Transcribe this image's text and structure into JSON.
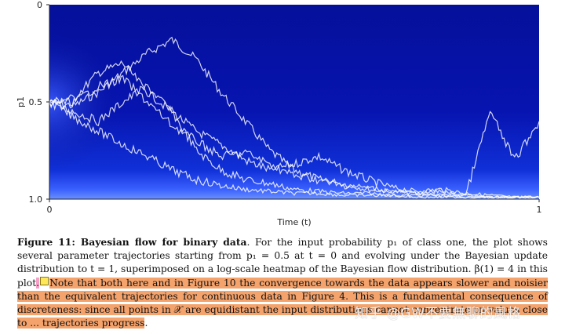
{
  "chart_data": {
    "type": "line",
    "xlabel": "Time (t)",
    "ylabel": "p1",
    "xlim": [
      0,
      1
    ],
    "ylim": [
      0,
      1.0
    ],
    "y_inverted": true,
    "x_ticks": [
      "0",
      "1"
    ],
    "y_ticks": [
      "0",
      "0.5",
      "1.0"
    ],
    "background": "log-scale heatmap of Bayesian flow distribution (dark blue to bright near p1 = 1.0)",
    "start": [
      0,
      0.5
    ],
    "series": [
      {
        "x": [
          0,
          0.05,
          0.1,
          0.15,
          0.2,
          0.25,
          0.3,
          0.35,
          0.4,
          0.45,
          0.5,
          0.55,
          0.6,
          0.65,
          0.7,
          0.75,
          0.8,
          0.85,
          0.9,
          0.95,
          1.0
        ],
        "y": [
          0.5,
          0.52,
          0.45,
          0.35,
          0.25,
          0.18,
          0.28,
          0.45,
          0.6,
          0.75,
          0.85,
          0.9,
          0.92,
          0.95,
          0.96,
          0.97,
          0.98,
          0.98,
          0.99,
          0.99,
          0.99
        ]
      },
      {
        "x": [
          0,
          0.05,
          0.1,
          0.15,
          0.2,
          0.25,
          0.3,
          0.35,
          0.4,
          0.45,
          0.5,
          0.55,
          0.6,
          0.65,
          0.7,
          0.75,
          0.8,
          0.85,
          0.9,
          0.95,
          1.0
        ],
        "y": [
          0.5,
          0.48,
          0.35,
          0.3,
          0.45,
          0.55,
          0.65,
          0.72,
          0.8,
          0.85,
          0.82,
          0.78,
          0.85,
          0.9,
          0.94,
          0.96,
          0.95,
          0.97,
          0.98,
          0.99,
          0.99
        ]
      },
      {
        "x": [
          0,
          0.05,
          0.1,
          0.15,
          0.2,
          0.25,
          0.3,
          0.35,
          0.4,
          0.45,
          0.5,
          0.55,
          0.6,
          0.65,
          0.7,
          0.75,
          0.8,
          0.85,
          0.9,
          0.95,
          1.0
        ],
        "y": [
          0.5,
          0.55,
          0.6,
          0.5,
          0.42,
          0.55,
          0.75,
          0.85,
          0.9,
          0.92,
          0.95,
          0.96,
          0.97,
          0.97,
          0.98,
          0.98,
          0.98,
          0.99,
          0.99,
          0.99,
          0.99
        ]
      },
      {
        "x": [
          0,
          0.05,
          0.1,
          0.15,
          0.2,
          0.25,
          0.3,
          0.35,
          0.4,
          0.45,
          0.5,
          0.55,
          0.6,
          0.65,
          0.7,
          0.75,
          0.8,
          0.85,
          0.9,
          0.95,
          1.0
        ],
        "y": [
          0.5,
          0.58,
          0.65,
          0.72,
          0.78,
          0.85,
          0.9,
          0.93,
          0.95,
          0.96,
          0.97,
          0.97,
          0.98,
          0.98,
          0.98,
          0.99,
          0.99,
          0.99,
          0.99,
          0.99,
          0.99
        ]
      },
      {
        "x": [
          0,
          0.05,
          0.1,
          0.15,
          0.2,
          0.25,
          0.3,
          0.35,
          0.4,
          0.45,
          0.5,
          0.55,
          0.6,
          0.65,
          0.7,
          0.75,
          0.8,
          0.85,
          0.9,
          0.95,
          1.0
        ],
        "y": [
          0.5,
          0.5,
          0.42,
          0.38,
          0.5,
          0.62,
          0.7,
          0.78,
          0.76,
          0.82,
          0.88,
          0.9,
          0.93,
          0.94,
          0.96,
          0.97,
          0.96,
          0.98,
          0.55,
          0.8,
          0.6
        ]
      }
    ]
  },
  "caption": {
    "label": "Figure 11: Bayesian flow for binary data",
    "part1": ". For the input probability p₁ of class one, the plot shows several parameter trajectories starting from p₁ = 0.5 at t = 0 and evolving under the Bayesian update distribution to t = 1, superimposed on a log-scale heatmap of the Bayesian flow distribution. β(1) = 4 in this plot",
    "pink_dot": ".",
    "highlighted": "Note that both here and in Figure 10 the convergence towards the data appears slower and noisier than the equivalent trajectories for continuous data in Figure 4. This is a fundamental consequence of discreteness: since all points in 𝒳 are equidistant the input distributions cannot concentrate on values close to ... trajectories progress",
    "end": "."
  },
  "watermark": "知乎 @GW不要無聊的風格",
  "colors": {
    "heatmap_dark": "#05109a",
    "heatmap_bright": "#5a80ff",
    "trajectory": "#ffffff",
    "highlight": "#f4a36c",
    "pink_mark": "#f5a0c8",
    "note_icon": "#ffe75a"
  }
}
